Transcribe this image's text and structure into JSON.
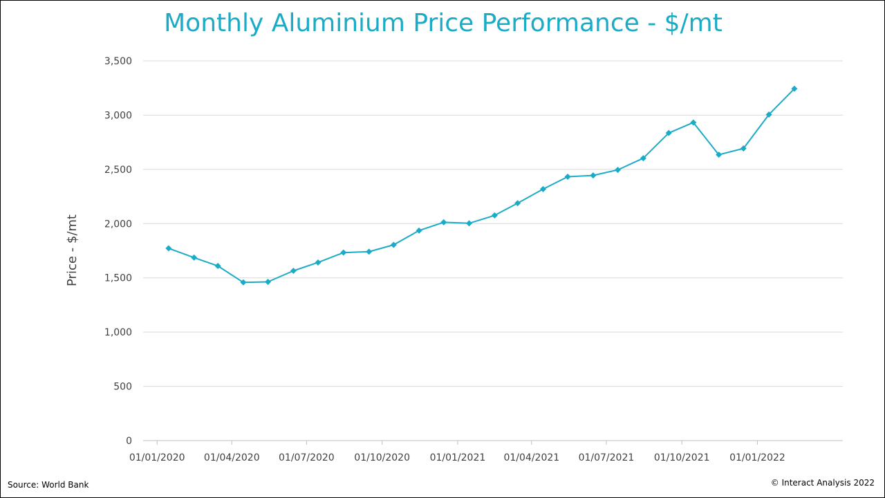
{
  "colors": {
    "title": "#1aabc7",
    "line": "#1aabc7",
    "grid": "#d9d9d9",
    "axis": "#bfbfbf",
    "text": "#404040"
  },
  "footer": {
    "source": "Source: World Bank",
    "copyright": "© Interact Analysis 2022"
  },
  "chart_data": {
    "type": "line",
    "title": "Monthly Aluminium Price Performance - $/mt",
    "xlabel": "",
    "ylabel": "Price - $/mt",
    "ylim": [
      0,
      3500
    ],
    "y_ticks": [
      0,
      500,
      1000,
      1500,
      2000,
      2500,
      3000,
      3500
    ],
    "y_tick_labels": [
      "0",
      "500",
      "1,000",
      "1,500",
      "2,000",
      "2,500",
      "3,000",
      "3,500"
    ],
    "x_ticks": [
      "2020-01-01",
      "2020-04-01",
      "2020-07-01",
      "2020-10-01",
      "2021-01-01",
      "2021-04-01",
      "2021-07-01",
      "2021-10-01",
      "2022-01-01"
    ],
    "x_tick_labels": [
      "01/01/2020",
      "01/04/2020",
      "01/07/2020",
      "01/10/2020",
      "01/01/2021",
      "01/04/2021",
      "01/07/2021",
      "01/10/2021",
      "01/01/2022"
    ],
    "xlim": [
      "2019-12-15",
      "2022-04-15"
    ],
    "grid": true,
    "legend": "none",
    "marker": "diamond",
    "series": [
      {
        "x": [
          "2020-01-15",
          "2020-02-15",
          "2020-03-15",
          "2020-04-15",
          "2020-05-15",
          "2020-06-15",
          "2020-07-15",
          "2020-08-15",
          "2020-09-15",
          "2020-10-15",
          "2020-11-15",
          "2020-12-15",
          "2021-01-15",
          "2021-02-15",
          "2021-03-15",
          "2021-04-15",
          "2021-05-15",
          "2021-06-15",
          "2021-07-15",
          "2021-08-15",
          "2021-09-15",
          "2021-10-15",
          "2021-11-15",
          "2021-12-15",
          "2022-01-15",
          "2022-02-15"
        ],
        "values": [
          1772,
          1687,
          1610,
          1458,
          1463,
          1565,
          1642,
          1733,
          1741,
          1804,
          1936,
          2012,
          2003,
          2076,
          2188,
          2318,
          2432,
          2444,
          2495,
          2603,
          2835,
          2932,
          2635,
          2693,
          3005,
          3243
        ]
      }
    ]
  }
}
